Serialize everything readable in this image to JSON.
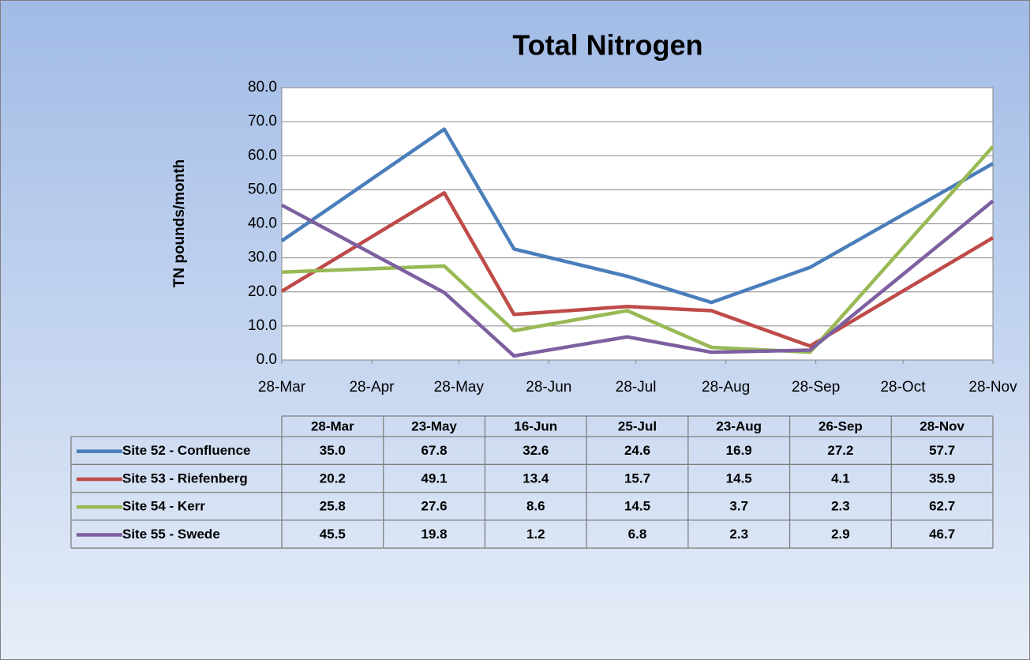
{
  "chart_data": {
    "type": "line",
    "title": "Total Nitrogen",
    "y_label": "TN pounds/month",
    "x": [
      "28-Mar",
      "23-May",
      "16-Jun",
      "25-Jul",
      "23-Aug",
      "26-Sep",
      "28-Nov"
    ],
    "xlim": [
      "28-Mar",
      "28-Nov"
    ],
    "xticks": [
      "28-Mar",
      "28-Apr",
      "28-May",
      "28-Jun",
      "28-Jul",
      "28-Aug",
      "28-Sep",
      "28-Oct",
      "28-Nov"
    ],
    "ylim": [
      0,
      80
    ],
    "yticks": [
      {
        "value": 0,
        "label": "0.0"
      },
      {
        "value": 10,
        "label": "10.0"
      },
      {
        "value": 20,
        "label": "20.0"
      },
      {
        "value": 30,
        "label": "30.0"
      },
      {
        "value": 40,
        "label": "40.0"
      },
      {
        "value": 50,
        "label": "50.0"
      },
      {
        "value": 60,
        "label": "60.0"
      },
      {
        "value": 70,
        "label": "70.0"
      },
      {
        "value": 80,
        "label": "80.0"
      }
    ],
    "grid": true,
    "series": [
      {
        "name": "Site 52 - Confluence",
        "color": "#4a7ebb",
        "values": [
          35.0,
          67.8,
          32.6,
          24.6,
          16.9,
          27.2,
          57.7
        ],
        "value_labels": [
          "35.0",
          "67.8",
          "32.6",
          "24.6",
          "16.9",
          "27.2",
          "57.7"
        ]
      },
      {
        "name": "Site 53 - Riefenberg",
        "color": "#be4b48",
        "values": [
          20.2,
          49.1,
          13.4,
          15.7,
          14.5,
          4.1,
          35.9
        ],
        "value_labels": [
          "20.2",
          "49.1",
          "13.4",
          "15.7",
          "14.5",
          "4.1",
          "35.9"
        ]
      },
      {
        "name": "Site 54 - Kerr",
        "color": "#98b954",
        "values": [
          25.8,
          27.6,
          8.6,
          14.5,
          3.7,
          2.3,
          62.7
        ],
        "value_labels": [
          "25.8",
          "27.6",
          "8.6",
          "14.5",
          "3.7",
          "2.3",
          "62.7"
        ]
      },
      {
        "name": "Site 55 - Swede",
        "color": "#7d60a0",
        "values": [
          45.5,
          19.8,
          1.2,
          6.8,
          2.3,
          2.9,
          46.7
        ],
        "value_labels": [
          "45.5",
          "19.8",
          "1.2",
          "6.8",
          "2.3",
          "2.9",
          "46.7"
        ]
      }
    ]
  }
}
